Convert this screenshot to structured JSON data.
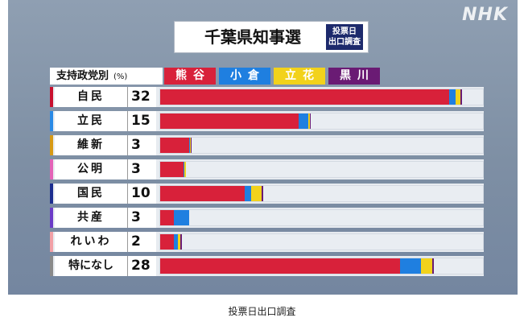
{
  "logo": "NHK",
  "title": "千葉県知事選",
  "badge": [
    "投票日",
    "出口調査"
  ],
  "header_label": "支持政党別",
  "header_unit": "(%)",
  "caption": "投票日出口調査",
  "chart_data": {
    "type": "bar",
    "stacked": true,
    "orientation": "horizontal",
    "title": "千葉県知事選",
    "categories": [
      "自民",
      "立民",
      "維新",
      "公明",
      "国民",
      "共産",
      "れいわ",
      "特になし"
    ],
    "category_values": [
      32,
      15,
      3,
      3,
      10,
      3,
      2,
      28
    ],
    "category_colors": [
      "#c8102e",
      "#2a8ae6",
      "#d79a15",
      "#e463b7",
      "#1c2d8f",
      "#6b3bc7",
      "#f2a0a6",
      "#8a8a8a"
    ],
    "xlim": [
      0,
      100
    ],
    "series": [
      {
        "name": "熊谷",
        "color": "#d8213a",
        "values": [
          89.6,
          42.8,
          8.9,
          7.3,
          26.3,
          4.2,
          4.2,
          74.4
        ]
      },
      {
        "name": "小倉",
        "color": "#1f7fe0",
        "values": [
          2.0,
          3.1,
          0.3,
          0.3,
          2.0,
          4.9,
          1.3,
          6.5
        ]
      },
      {
        "name": "立花",
        "color": "#f2d21b",
        "values": [
          1.5,
          0.4,
          0.3,
          0.3,
          3.2,
          0,
          0.8,
          3.4
        ]
      },
      {
        "name": "黒川",
        "color": "#6a1b74",
        "values": [
          0.5,
          0.3,
          0.2,
          0,
          0.3,
          0,
          0.4,
          0.4
        ]
      }
    ]
  }
}
